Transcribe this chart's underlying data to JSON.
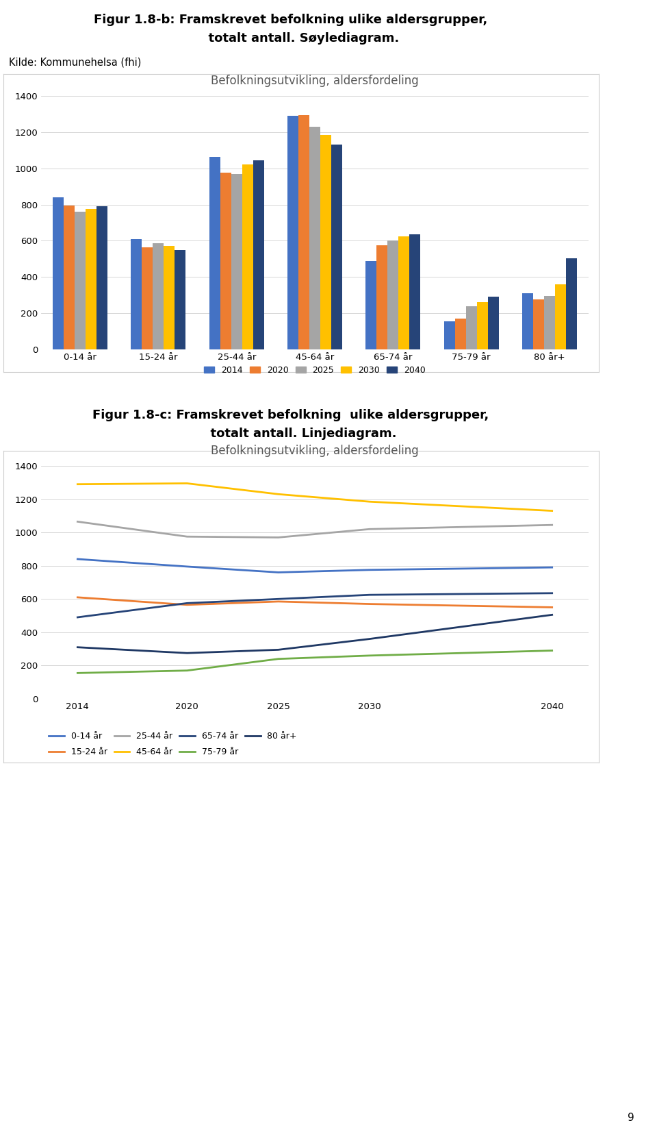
{
  "title1_line1": "Figur 1.8-b: Framskrevet befolkning ulike aldersgrupper,",
  "title1_line2": "      totalt antall. Søylediagram.",
  "title1_bg": "#aab4d4",
  "source_text": "Kilde: Kommunehelsa (fhi)",
  "bar_chart_title": "Befolkningsutvikling, aldersfordeling",
  "line_chart_title": "Befolkningsutvikling, aldersfordeling",
  "title2_line1": "Figur 1.8-c: Framskrevet befolkning  ulike aldersgrupper,",
  "title2_line2": "      totalt antall. Linjediagram.",
  "title2_bg": "#aab4d4",
  "age_groups": [
    "0-14 år",
    "15-24 år",
    "25-44 år",
    "45-64 år",
    "65-74 år",
    "75-79 år",
    "80 år+"
  ],
  "years": [
    "2014",
    "2020",
    "2025",
    "2030",
    "2040"
  ],
  "bar_data": {
    "2014": [
      840,
      610,
      1065,
      1290,
      490,
      155,
      310
    ],
    "2020": [
      795,
      565,
      975,
      1295,
      575,
      170,
      275
    ],
    "2025": [
      760,
      585,
      970,
      1230,
      600,
      240,
      295
    ],
    "2030": [
      775,
      570,
      1020,
      1185,
      625,
      260,
      360
    ],
    "2040": [
      790,
      550,
      1045,
      1130,
      635,
      290,
      505
    ]
  },
  "bar_colors": {
    "2014": "#4472c4",
    "2020": "#ed7d31",
    "2025": "#a5a5a5",
    "2030": "#ffc000",
    "2040": "#264478"
  },
  "line_colors": [
    "#4472c4",
    "#ed7d31",
    "#a5a5a5",
    "#ffc000",
    "#264478",
    "#70ad47",
    "#1f3864"
  ],
  "line_labels": [
    "0-14 år",
    "15-24 år",
    "25-44 år",
    "45-64 år",
    "65-74 år",
    "75-79 år",
    "80 år+"
  ],
  "ylim": [
    0,
    1400
  ],
  "yticks": [
    0,
    200,
    400,
    600,
    800,
    1000,
    1200,
    1400
  ],
  "page_number": "9",
  "line_years": [
    2014,
    2020,
    2025,
    2030,
    2040
  ]
}
